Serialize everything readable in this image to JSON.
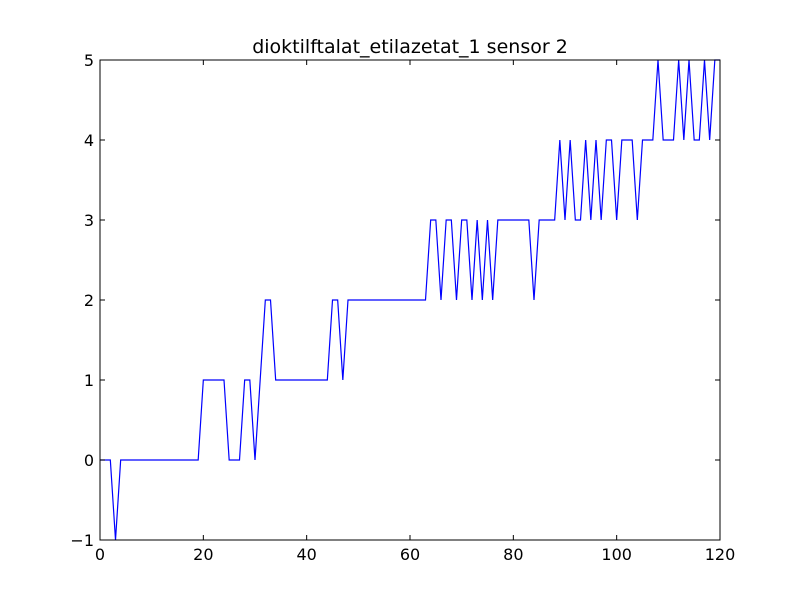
{
  "chart_data": {
    "type": "line",
    "title": "dioktilftalat_etilazetat_1 sensor 2",
    "xlabel": "",
    "ylabel": "",
    "xlim": [
      0,
      120
    ],
    "ylim": [
      -1,
      5
    ],
    "xticks": [
      0,
      20,
      40,
      60,
      80,
      100,
      120
    ],
    "yticks": [
      -1,
      0,
      1,
      2,
      3,
      4,
      5
    ],
    "grid": false,
    "line_color": "#0000ff",
    "series": [
      {
        "x": [
          0,
          1,
          2,
          3,
          4,
          5,
          6,
          7,
          8,
          9,
          10,
          11,
          12,
          13,
          14,
          15,
          16,
          17,
          18,
          19,
          20,
          21,
          22,
          23,
          24,
          25,
          26,
          27,
          28,
          29,
          30,
          31,
          32,
          33,
          34,
          35,
          36,
          37,
          38,
          39,
          40,
          41,
          42,
          43,
          44,
          45,
          46,
          47,
          48,
          49,
          50,
          51,
          52,
          53,
          54,
          55,
          56,
          57,
          58,
          59,
          60,
          61,
          62,
          63,
          64,
          65,
          66,
          67,
          68,
          69,
          70,
          71,
          72,
          73,
          74,
          75,
          76,
          77,
          78,
          79,
          80,
          81,
          82,
          83,
          84,
          85,
          86,
          87,
          88,
          89,
          90,
          91,
          92,
          93,
          94,
          95,
          96,
          97,
          98,
          99,
          100,
          101,
          102,
          103,
          104,
          105,
          106,
          107,
          108,
          109,
          110,
          111,
          112,
          113,
          114,
          115,
          116,
          117,
          118,
          119,
          120
        ],
        "values": [
          0,
          0,
          0,
          -1,
          0,
          0,
          0,
          0,
          0,
          0,
          0,
          0,
          0,
          0,
          0,
          0,
          0,
          0,
          0,
          0,
          1,
          1,
          1,
          1,
          1,
          0,
          0,
          0,
          1,
          1,
          0,
          1,
          2,
          2,
          1,
          1,
          1,
          1,
          1,
          1,
          1,
          1,
          1,
          1,
          1,
          2,
          2,
          1,
          2,
          2,
          2,
          2,
          2,
          2,
          2,
          2,
          2,
          2,
          2,
          2,
          2,
          2,
          2,
          2,
          3,
          3,
          2,
          3,
          3,
          2,
          3,
          3,
          2,
          3,
          2,
          3,
          2,
          3,
          3,
          3,
          3,
          3,
          3,
          3,
          2,
          3,
          3,
          3,
          3,
          4,
          3,
          4,
          3,
          3,
          4,
          3,
          4,
          3,
          4,
          4,
          3,
          4,
          4,
          4,
          3,
          4,
          4,
          4,
          5,
          4,
          4,
          4,
          5,
          4,
          5,
          4,
          4,
          5,
          4,
          5,
          5
        ]
      }
    ]
  }
}
